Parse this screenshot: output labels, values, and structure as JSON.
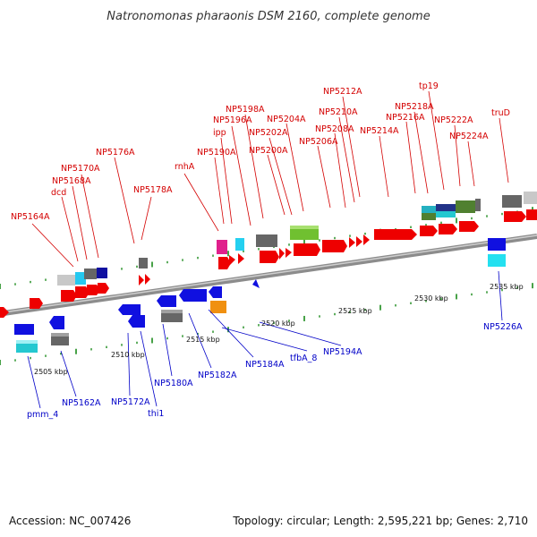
{
  "title": "Natronomonas pharaonis DSM 2160, complete genome",
  "footer": {
    "accession": "Accession: NC_007426",
    "summary": "Topology: circular; Length: 2,595,221 bp; Genes: 2,710"
  },
  "scale_labels": [
    "2505 kbp",
    "2510 kbp",
    "2515 kbp",
    "2520 kbp",
    "2525 kbp",
    "2530 kbp",
    "2535 kbp"
  ],
  "colors": {
    "forward_gene": "#ee0000",
    "reverse_gene": "#1010e0",
    "top_label": "#d40000",
    "bottom_label": "#0000c8",
    "backbone": "#8c8c8c",
    "tick": "#1a8a1a"
  },
  "top_labels": [
    "NP5164A",
    "dcd",
    "NP5168A",
    "NP5170A",
    "NP5176A",
    "NP5178A",
    "rnhA",
    "NP5190A",
    "ipp",
    "NP5196A",
    "NP5198A",
    "NP5200A",
    "NP5202A",
    "NP5204A",
    "NP5206A",
    "NP5208A",
    "NP5210A",
    "NP5212A",
    "NP5214A",
    "NP5216A",
    "NP5218A",
    "tp19",
    "NP5222A",
    "NP5224A",
    "truD"
  ],
  "bottom_labels": [
    "pmm_4",
    "NP5162A",
    "NP5172A",
    "thi1",
    "NP5180A",
    "NP5182A",
    "NP5184A",
    "tfbA_8",
    "NP5194A",
    "NP5226A"
  ]
}
